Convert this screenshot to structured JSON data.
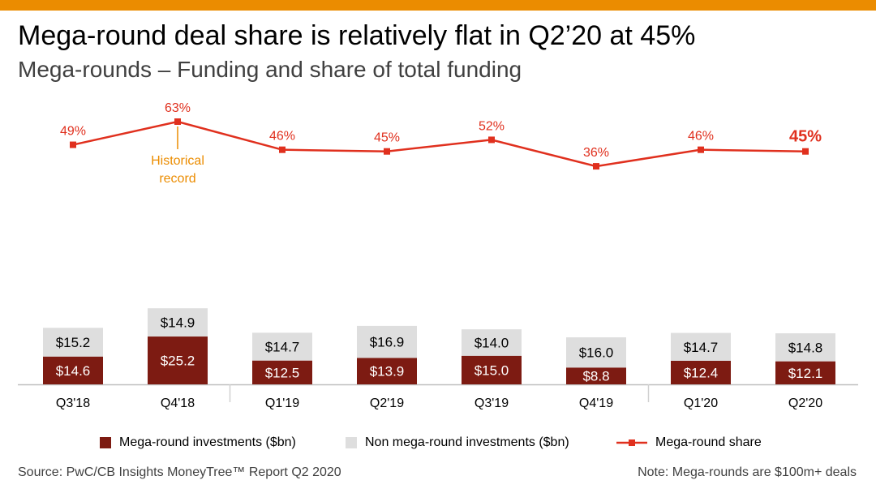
{
  "title": "Mega-round deal share is relatively flat in Q2’20 at 45%",
  "subtitle": "Mega-rounds – Funding and share of total funding",
  "colors": {
    "accent_bar": "#eb8c00",
    "mega": "#7d1b12",
    "non_mega": "#dedede",
    "share_line": "#e0301e",
    "annotation": "#eb8c00"
  },
  "chart_data": {
    "type": "bar",
    "stacked": true,
    "categories": [
      "Q3'18",
      "Q4'18",
      "Q1'19",
      "Q2'19",
      "Q3'19",
      "Q4'19",
      "Q1'20",
      "Q2'20"
    ],
    "series": [
      {
        "name": "Mega-round investments ($bn)",
        "values": [
          14.6,
          25.2,
          12.5,
          13.9,
          15.0,
          8.8,
          12.4,
          12.1
        ],
        "labels": [
          "$14.6",
          "$25.2",
          "$12.5",
          "$13.9",
          "$15.0",
          "$8.8",
          "$12.4",
          "$12.1"
        ]
      },
      {
        "name": "Non mega-round investments ($bn)",
        "values": [
          15.2,
          14.9,
          14.7,
          16.9,
          14.0,
          16.0,
          14.7,
          14.8
        ],
        "labels": [
          "$15.2",
          "$14.9",
          "$14.7",
          "$16.9",
          "$14.0",
          "$16.0",
          "$14.7",
          "$14.8"
        ]
      }
    ],
    "line_series": {
      "name": "Mega-round share",
      "values": [
        49,
        63,
        46,
        45,
        52,
        36,
        46,
        45
      ],
      "labels": [
        "49%",
        "63%",
        "46%",
        "45%",
        "52%",
        "36%",
        "46%",
        "45%"
      ]
    },
    "annotation": {
      "category": "Q4'18",
      "text": [
        "Historical",
        "record"
      ]
    },
    "legend_position": "bottom"
  },
  "source": "Source: PwC/CB Insights MoneyTree™ Report Q2 2020",
  "note": "Note: Mega-rounds are $100m+ deals"
}
